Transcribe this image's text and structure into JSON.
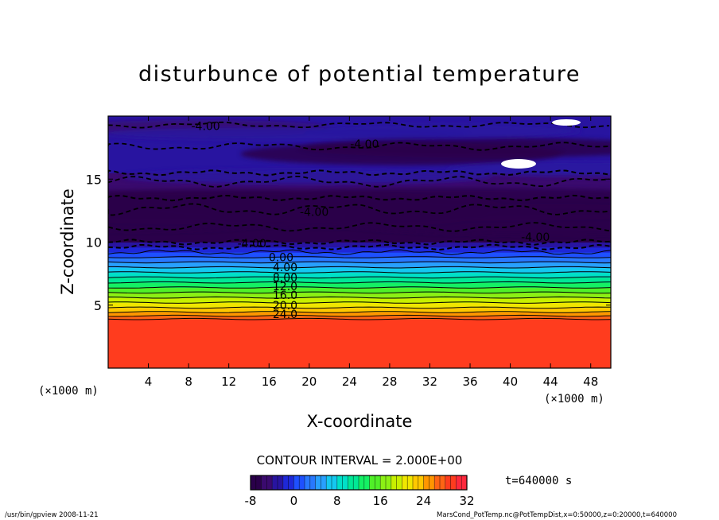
{
  "chart_data": {
    "type": "heatmap",
    "title": "disturbunce of potential temperature",
    "xlabel": "X-coordinate",
    "ylabel": "Z-coordinate",
    "x_unit_left": "(×1000 m)",
    "x_unit_right": "(×1000 m)",
    "xlim": [
      0,
      50
    ],
    "ylim": [
      0,
      20
    ],
    "x_ticks": [
      4,
      8,
      12,
      16,
      20,
      24,
      28,
      32,
      36,
      40,
      44,
      48
    ],
    "y_ticks": [
      5,
      10,
      15
    ],
    "contour_interval_label": "CONTOUR INTERVAL = 2.000E+00",
    "time_label": "t=640000 s",
    "colorbar": {
      "min": -8,
      "max": 32,
      "step": 2,
      "ticks": [
        -8,
        0,
        8,
        16,
        24,
        32
      ],
      "colors": [
        "#2a004a",
        "#3a0a6e",
        "#2814a0",
        "#1e28d8",
        "#1e50ff",
        "#2878ff",
        "#28a0ff",
        "#14c8f0",
        "#00e0c8",
        "#00e896",
        "#14f064",
        "#50f028",
        "#8cf014",
        "#c8f000",
        "#f0e600",
        "#ffc800",
        "#ff9600",
        "#ff6414",
        "#ff3c1e",
        "#ff283c",
        "#ff6496"
      ]
    },
    "contour_labels": [
      {
        "text": "-4.00",
        "x": 9.7,
        "z": 19.2
      },
      {
        "text": "-4.00",
        "x": 25.5,
        "z": 17.8
      },
      {
        "text": "-4.00",
        "x": 20.5,
        "z": 12.4
      },
      {
        "text": "-4.00",
        "x": 14.3,
        "z": 9.9
      },
      {
        "text": "-4.00",
        "x": 42.5,
        "z": 10.4
      },
      {
        "text": "0.00",
        "x": 17.2,
        "z": 8.8
      },
      {
        "text": "4.00",
        "x": 17.6,
        "z": 8.0
      },
      {
        "text": "8.00",
        "x": 17.6,
        "z": 7.2
      },
      {
        "text": "12.0",
        "x": 17.6,
        "z": 6.5
      },
      {
        "text": "16.0",
        "x": 17.6,
        "z": 5.8
      },
      {
        "text": "20.0",
        "x": 17.6,
        "z": 5.0
      },
      {
        "text": "24.0",
        "x": 17.6,
        "z": 4.3
      }
    ],
    "bands": [
      {
        "z0": 0,
        "z1": 3.9,
        "value": 29
      },
      {
        "z0": 3.9,
        "z1": 4.15,
        "value": 26
      },
      {
        "z0": 4.15,
        "z1": 4.45,
        "value": 24
      },
      {
        "z0": 4.45,
        "z1": 4.8,
        "value": 22
      },
      {
        "z0": 4.8,
        "z1": 5.2,
        "value": 20
      },
      {
        "z0": 5.2,
        "z1": 5.6,
        "value": 18
      },
      {
        "z0": 5.6,
        "z1": 6.0,
        "value": 16
      },
      {
        "z0": 6.0,
        "z1": 6.4,
        "value": 14
      },
      {
        "z0": 6.4,
        "z1": 6.8,
        "value": 12
      },
      {
        "z0": 6.8,
        "z1": 7.2,
        "value": 10
      },
      {
        "z0": 7.2,
        "z1": 7.6,
        "value": 8
      },
      {
        "z0": 7.6,
        "z1": 8.0,
        "value": 6
      },
      {
        "z0": 8.0,
        "z1": 8.4,
        "value": 4
      },
      {
        "z0": 8.4,
        "z1": 8.8,
        "value": 2
      },
      {
        "z0": 8.8,
        "z1": 9.2,
        "value": 0
      },
      {
        "z0": 9.2,
        "z1": 9.6,
        "value": -2
      },
      {
        "z0": 9.6,
        "z1": 10.0,
        "value": -4
      },
      {
        "z0": 10.0,
        "z1": 13.5,
        "value": -7
      },
      {
        "z0": 13.5,
        "z1": 15.5,
        "value": -5
      },
      {
        "z0": 15.5,
        "z1": 20,
        "value": -4
      }
    ]
  },
  "footer": {
    "left": "/usr/bin/gpview   2008-11-21",
    "right": "MarsCond_PotTemp.nc@PotTempDist,x=0:50000,z=0:20000,t=640000"
  }
}
